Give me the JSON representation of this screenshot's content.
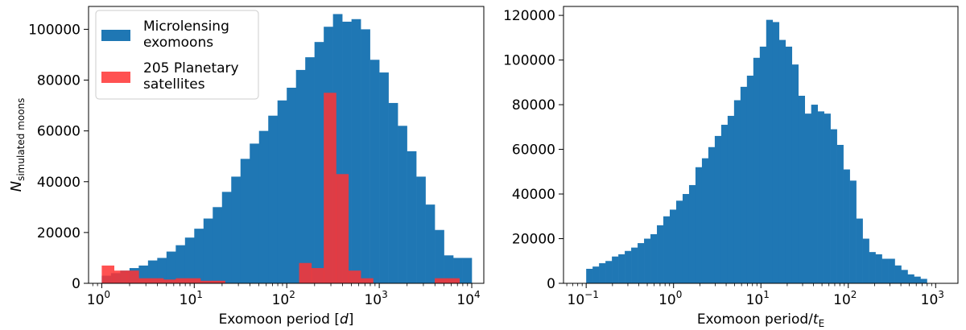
{
  "chart_data": [
    {
      "type": "bar",
      "xscale": "log",
      "xlabel_pre": "Exomoon period [",
      "xlabel_it": "d",
      "xlabel_post": "]",
      "ylabel_main": "N",
      "ylabel_sub": "simulated moons",
      "xlim": [
        0.72,
        13500
      ],
      "ylim": [
        0,
        109000
      ],
      "xticks": [
        {
          "base": "10",
          "exp": "0",
          "value": 1
        },
        {
          "base": "10",
          "exp": "1",
          "value": 10
        },
        {
          "base": "10",
          "exp": "2",
          "value": 100
        },
        {
          "base": "10",
          "exp": "3",
          "value": 1000
        },
        {
          "base": "10",
          "exp": "4",
          "value": 10000
        }
      ],
      "yticks": [
        {
          "label": "0",
          "value": 0
        },
        {
          "label": "20000",
          "value": 20000
        },
        {
          "label": "40000",
          "value": 40000
        },
        {
          "label": "60000",
          "value": 60000
        },
        {
          "label": "80000",
          "value": 80000
        },
        {
          "label": "100000",
          "value": 100000
        }
      ],
      "series": [
        {
          "name": "Microlensing exomoons",
          "name_lines": [
            "Microlensing",
            "exomoons"
          ],
          "color": "#1f77b4",
          "log_range": [
            0,
            4
          ],
          "values": [
            3000,
            4000,
            5000,
            6000,
            7000,
            9000,
            10000,
            12500,
            15000,
            18000,
            21500,
            25500,
            30000,
            36000,
            42000,
            49000,
            55000,
            60000,
            66000,
            72000,
            77000,
            84000,
            89000,
            95000,
            101000,
            106000,
            103000,
            104000,
            100000,
            88000,
            83000,
            71000,
            62000,
            52000,
            42000,
            31000,
            21000,
            11000,
            10000,
            10000
          ]
        },
        {
          "name": "205 Planetary satellites",
          "name_lines": [
            "205 Planetary",
            "satellites"
          ],
          "color": "#ff3333",
          "alpha": 0.85,
          "log_range": [
            0,
            4
          ],
          "values": [
            7000,
            5000,
            5000,
            2000,
            2000,
            1500,
            2000,
            2000,
            1000,
            1000,
            0,
            0,
            0,
            0,
            0,
            0,
            8000,
            6000,
            75000,
            43000,
            5000,
            2000,
            0,
            0,
            0,
            0,
            0,
            2000,
            2000,
            0
          ]
        }
      ],
      "legend": "top-left"
    },
    {
      "type": "bar",
      "xscale": "log",
      "xlabel_pre": "Exomoon period/",
      "xlabel_it": "t",
      "xlabel_sub": "E",
      "xlim": [
        0.055,
        1800
      ],
      "ylim": [
        0,
        124000
      ],
      "xticks": [
        {
          "base": "10",
          "exp": "−1",
          "value": 0.1
        },
        {
          "base": "10",
          "exp": "0",
          "value": 1
        },
        {
          "base": "10",
          "exp": "1",
          "value": 10
        },
        {
          "base": "10",
          "exp": "2",
          "value": 100
        },
        {
          "base": "10",
          "exp": "3",
          "value": 1000
        }
      ],
      "yticks": [
        {
          "label": "0",
          "value": 0
        },
        {
          "label": "20000",
          "value": 20000
        },
        {
          "label": "40000",
          "value": 40000
        },
        {
          "label": "60000",
          "value": 60000
        },
        {
          "label": "80000",
          "value": 80000
        },
        {
          "label": "100000",
          "value": 100000
        },
        {
          "label": "120000",
          "value": 120000
        }
      ],
      "series": [
        {
          "name": "",
          "color": "#1f77b4",
          "log_range": [
            -1,
            2.9
          ],
          "values": [
            6500,
            7500,
            9000,
            10000,
            12000,
            13000,
            14500,
            16000,
            18000,
            20000,
            22000,
            26000,
            30000,
            33000,
            37000,
            40000,
            44000,
            52000,
            56000,
            61000,
            66000,
            71000,
            75000,
            82000,
            88000,
            93000,
            101000,
            106000,
            118000,
            117000,
            109000,
            106000,
            98000,
            84000,
            76000,
            80000,
            77000,
            76000,
            69000,
            62000,
            51000,
            46000,
            29000,
            20000,
            14000,
            13000,
            11000,
            11000,
            8000,
            6000,
            4000,
            3000,
            2000
          ]
        }
      ]
    }
  ]
}
